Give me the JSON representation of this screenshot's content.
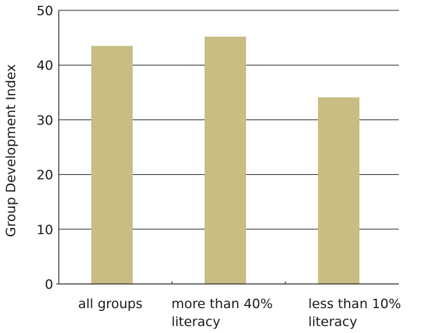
{
  "chart_data": {
    "type": "bar",
    "categories": [
      [
        "all groups"
      ],
      [
        "more than 40%",
        "literacy"
      ],
      [
        "less than 10%",
        "literacy"
      ]
    ],
    "values": [
      43.5,
      45.2,
      34.1
    ],
    "ylabel": "Group Development Index",
    "xlabel": "",
    "ylim": [
      0,
      50
    ],
    "yticks": [
      0,
      10,
      20,
      30,
      40,
      50
    ],
    "grid": true,
    "bar_color": "#c8bd82",
    "grid_color": "#1a1a1a"
  }
}
